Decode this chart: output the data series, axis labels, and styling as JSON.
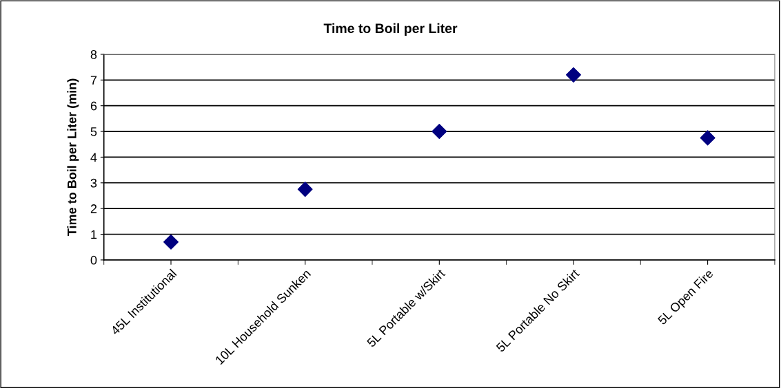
{
  "chart_data": {
    "type": "scatter",
    "title": "Time to Boil per Liter",
    "ylabel": "Time to Boil per Liter (min)",
    "categories": [
      "45L Institutional",
      "10L Household Sunken",
      "5L Portable w/Skirt",
      "5L Portable No Skirt",
      "5L Open Fire"
    ],
    "series": [
      {
        "color": "#000080",
        "values": [
          0.7,
          2.75,
          5.0,
          7.2,
          4.75
        ]
      }
    ],
    "ylim": [
      0,
      8
    ],
    "yticks": [
      0,
      1,
      2,
      3,
      4,
      5,
      6,
      7,
      8
    ],
    "grid": "y",
    "marker": "diamond",
    "legend": false
  }
}
